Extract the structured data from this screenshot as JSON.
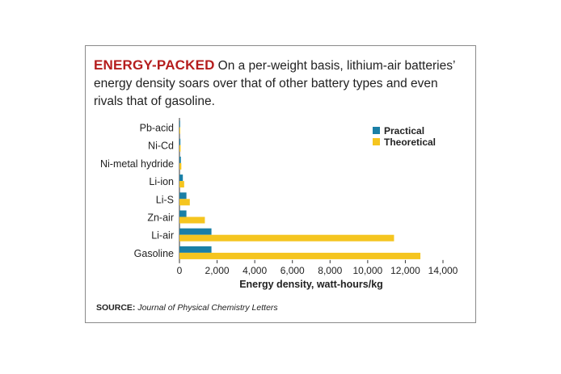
{
  "headline": "ENERGY-PACKED",
  "description": "On a per-weight basis, lithium-air batteries’ energy density soars over that of other battery types and even rivals that of gasoline.",
  "source": {
    "label": "SOURCE:",
    "text": "Journal of Physical Chemistry Letters"
  },
  "colors": {
    "practical": "#1a7fa6",
    "theoretical": "#f5c51f",
    "headline": "#b51d1d"
  },
  "chart_data": {
    "type": "bar",
    "orientation": "horizontal",
    "categories": [
      "Pb-acid",
      "Ni-Cd",
      "Ni-metal hydride",
      "Li-ion",
      "Li-S",
      "Zn-air",
      "Li-air",
      "Gasoline"
    ],
    "series": [
      {
        "name": "Practical",
        "values": [
          35,
          50,
          75,
          180,
          370,
          370,
          1700,
          1700
        ]
      },
      {
        "name": "Theoretical",
        "values": [
          40,
          60,
          100,
          250,
          550,
          1350,
          11400,
          12800
        ]
      }
    ],
    "xlabel": "Energy density, watt-hours/kg",
    "ylabel": "",
    "xlim": [
      0,
      14000
    ],
    "xticks": [
      "0",
      "2,000",
      "4,000",
      "6,000",
      "8,000",
      "10,000",
      "12,000",
      "14,000"
    ],
    "legend_position": "top-right",
    "grid": false
  }
}
